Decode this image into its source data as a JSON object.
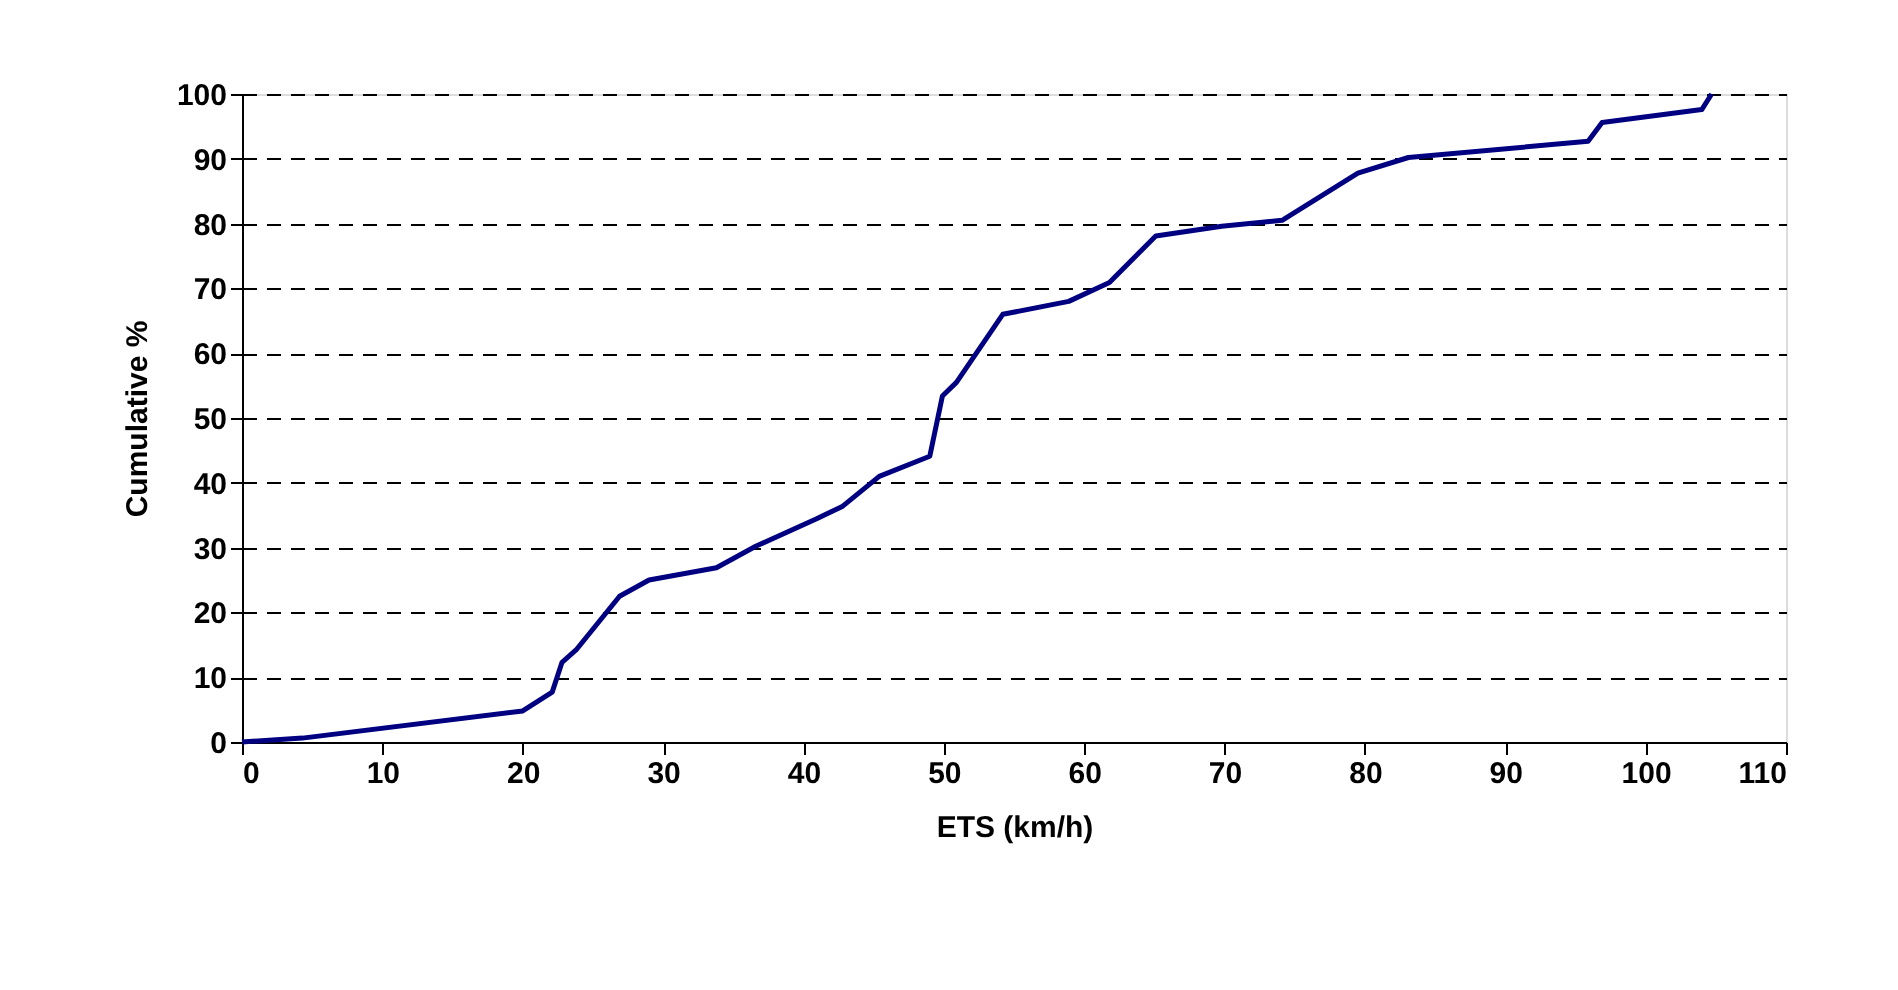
{
  "chart_data": {
    "type": "line",
    "xlabel": "ETS (km/h)",
    "ylabel": "Cumulative %",
    "x": [
      0,
      4.3,
      20,
      22.1,
      22.8,
      23.8,
      26.9,
      29,
      33.8,
      36.6,
      40.9,
      42.8,
      45.4,
      49,
      49.9,
      50.9,
      54.2,
      58.9,
      61.8,
      65.1,
      69.8,
      74.1,
      79.5,
      83.1,
      95.9,
      96.9,
      104,
      104.7
    ],
    "series": [
      {
        "color": "#000080",
        "values": [
          0,
          0.6,
          4.8,
          7.7,
          12.3,
          14.2,
          22.5,
          25,
          26.9,
          30.2,
          34.4,
          36.4,
          41,
          44.1,
          53.4,
          55.5,
          66,
          68,
          70.9,
          78.1,
          79.6,
          80.5,
          87.8,
          90.2,
          92.7,
          95.6,
          97.6,
          100
        ]
      }
    ],
    "xlim": [
      0,
      110
    ],
    "ylim": [
      0,
      100
    ],
    "xticks": [
      0,
      10,
      20,
      30,
      40,
      50,
      60,
      70,
      80,
      90,
      100,
      110
    ],
    "yticks": [
      0,
      10,
      20,
      30,
      40,
      50,
      60,
      70,
      80,
      90,
      100
    ],
    "grid": "y",
    "marker": "none",
    "line_style": "solid"
  }
}
